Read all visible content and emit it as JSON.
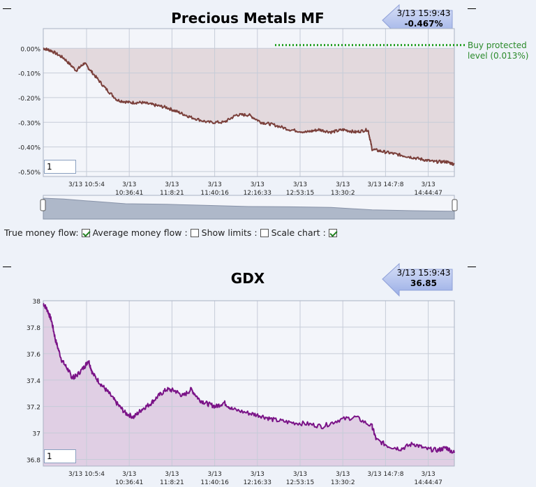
{
  "colors": {
    "background": "#eef2f9",
    "chart1_line": "#7a3f3a",
    "chart1_fill": "#e3d9dd",
    "chart2_line": "#7a1387",
    "chart2_fill": "#e0cfe4",
    "buy_level": "#1e9e1e",
    "badge_blue": "#a3b3e6"
  },
  "chart_data": [
    {
      "type": "line",
      "title": "Precious Metals MF",
      "badge": {
        "time": "3/13 15:9:43",
        "value": "-0.467%"
      },
      "zoom_value": "1",
      "y_ticks": [
        "0.00%",
        "-0.10%",
        "-0.20%",
        "-0.30%",
        "-0.40%",
        "-0.50%"
      ],
      "y_tick_values": [
        0.0,
        -0.1,
        -0.2,
        -0.3,
        -0.4,
        -0.5
      ],
      "ylim": [
        -0.52,
        0.08
      ],
      "x_tick_labels": [
        {
          "line1": "3/13 10:5:4",
          "line2": ""
        },
        {
          "line1": "3/13",
          "line2": "10:36:41"
        },
        {
          "line1": "3/13",
          "line2": "11:8:21"
        },
        {
          "line1": "3/13",
          "line2": "11:40:16"
        },
        {
          "line1": "3/13",
          "line2": "12:16:33"
        },
        {
          "line1": "3/13",
          "line2": "12:53:15"
        },
        {
          "line1": "3/13",
          "line2": "13:30:2"
        },
        {
          "line1": "3/13 14:7:8",
          "line2": ""
        },
        {
          "line1": "3/13",
          "line2": "14:44:47"
        }
      ],
      "annotation": {
        "line1": "Buy protected",
        "line2": "level (0.013%)",
        "value": 0.013
      },
      "series": [
        {
          "x": [
            0,
            0.02,
            0.05,
            0.08,
            0.1,
            0.12,
            0.15,
            0.18,
            0.21,
            0.24,
            0.27,
            0.3,
            0.33,
            0.36,
            0.4,
            0.44,
            0.47,
            0.5,
            0.53,
            0.56,
            0.6,
            0.64,
            0.67,
            0.7,
            0.73,
            0.76,
            0.79,
            0.8,
            0.83,
            0.86,
            0.89,
            0.92,
            0.95,
            0.98,
            1.0
          ],
          "y": [
            0.0,
            -0.01,
            -0.04,
            -0.09,
            -0.06,
            -0.1,
            -0.16,
            -0.21,
            -0.22,
            -0.22,
            -0.23,
            -0.24,
            -0.26,
            -0.28,
            -0.3,
            -0.3,
            -0.27,
            -0.27,
            -0.3,
            -0.31,
            -0.33,
            -0.34,
            -0.33,
            -0.34,
            -0.33,
            -0.34,
            -0.33,
            -0.41,
            -0.42,
            -0.43,
            -0.44,
            -0.45,
            -0.46,
            -0.46,
            -0.47
          ]
        }
      ]
    },
    {
      "type": "area",
      "title": "GDX",
      "badge": {
        "time": "3/13 15:9:43",
        "value": "36.85"
      },
      "zoom_value": "1",
      "y_ticks": [
        "38",
        "37.8",
        "37.6",
        "37.4",
        "37.2",
        "37",
        "36.8"
      ],
      "y_tick_values": [
        38,
        37.8,
        37.6,
        37.4,
        37.2,
        37.0,
        36.8
      ],
      "ylim": [
        36.75,
        38.0
      ],
      "x_tick_labels": [
        {
          "line1": "3/13 10:5:4",
          "line2": ""
        },
        {
          "line1": "3/13",
          "line2": "10:36:41"
        },
        {
          "line1": "3/13",
          "line2": "11:8:21"
        },
        {
          "line1": "3/13",
          "line2": "11:40:16"
        },
        {
          "line1": "3/13",
          "line2": "12:16:33"
        },
        {
          "line1": "3/13",
          "line2": "12:53:15"
        },
        {
          "line1": "3/13",
          "line2": "13:30:2"
        },
        {
          "line1": "3/13 14:7:8",
          "line2": ""
        },
        {
          "line1": "3/13",
          "line2": "14:44:47"
        }
      ],
      "series": [
        {
          "x": [
            0,
            0.01,
            0.02,
            0.03,
            0.045,
            0.06,
            0.07,
            0.08,
            0.1,
            0.11,
            0.12,
            0.14,
            0.16,
            0.18,
            0.2,
            0.22,
            0.24,
            0.26,
            0.28,
            0.3,
            0.32,
            0.34,
            0.36,
            0.38,
            0.4,
            0.42,
            0.44,
            0.46,
            0.5,
            0.53,
            0.56,
            0.6,
            0.64,
            0.68,
            0.72,
            0.76,
            0.8,
            0.81,
            0.84,
            0.87,
            0.9,
            0.93,
            0.96,
            0.98,
            1.0
          ],
          "y": [
            37.98,
            37.93,
            37.85,
            37.7,
            37.55,
            37.48,
            37.42,
            37.43,
            37.5,
            37.55,
            37.45,
            37.37,
            37.3,
            37.22,
            37.15,
            37.12,
            37.18,
            37.22,
            37.28,
            37.33,
            37.32,
            37.28,
            37.33,
            37.25,
            37.22,
            37.2,
            37.23,
            37.18,
            37.15,
            37.13,
            37.1,
            37.08,
            37.07,
            37.05,
            37.1,
            37.12,
            37.05,
            36.95,
            36.9,
            36.88,
            36.92,
            36.88,
            36.87,
            36.89,
            36.85
          ]
        }
      ]
    }
  ],
  "controls": {
    "true_money_flow": {
      "label": "True money flow:",
      "checked": true
    },
    "average_money_flow": {
      "label": "Average money flow :",
      "checked": false
    },
    "show_limits": {
      "label": "Show limits :",
      "checked": false
    },
    "scale_chart": {
      "label": "Scale chart :",
      "checked": true
    }
  },
  "navigator": {
    "x": [
      0,
      0.05,
      0.1,
      0.2,
      0.3,
      0.4,
      0.5,
      0.6,
      0.7,
      0.8,
      0.9,
      1.0
    ],
    "y": [
      0.0,
      -0.03,
      -0.09,
      -0.2,
      -0.22,
      -0.26,
      -0.3,
      -0.31,
      -0.33,
      -0.42,
      -0.45,
      -0.47
    ]
  }
}
